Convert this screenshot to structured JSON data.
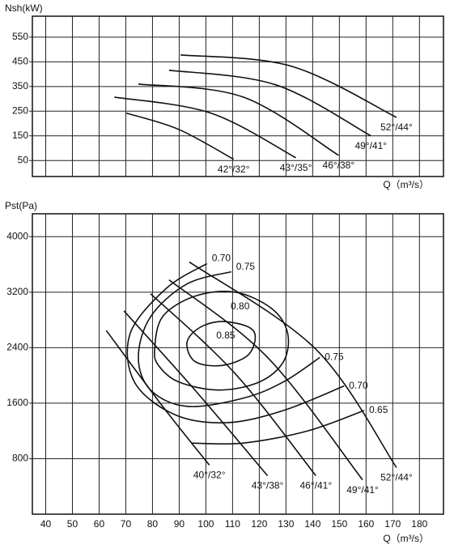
{
  "chart_data": [
    {
      "type": "line",
      "ylabel": "Nsh(kW)",
      "xlabel": "Q（m³/s）",
      "xlim": [
        35,
        189
      ],
      "ylim": [
        -15,
        635
      ],
      "xticks": [
        40,
        50,
        60,
        70,
        80,
        90,
        100,
        110,
        120,
        130,
        140,
        150,
        160,
        170,
        180
      ],
      "xtick_labels": false,
      "yticks": [
        50,
        150,
        250,
        350,
        450,
        550
      ],
      "grid": true,
      "color": "#111111",
      "series": [
        {
          "name": "42°/32°",
          "x": [
            70.2,
            89.8,
            110.4
          ],
          "values": [
            242,
            176,
            55
          ]
        },
        {
          "name": "43°/35°",
          "x": [
            65.7,
            101.9,
            133.7
          ],
          "values": [
            307,
            242,
            61
          ]
        },
        {
          "name": "46°/38°",
          "x": [
            74.7,
            114,
            149.7
          ],
          "values": [
            360,
            307,
            71
          ]
        },
        {
          "name": "49°/41°",
          "x": [
            86.2,
            126.1,
            161.8
          ],
          "values": [
            416,
            357,
            150
          ]
        },
        {
          "name": "52°/44°",
          "x": [
            90.5,
            132.1,
            171.4
          ],
          "values": [
            478,
            432,
            225
          ]
        }
      ]
    },
    {
      "type": "line",
      "ylabel": "Pst(Pa)",
      "xlabel": "Q（m³/s）",
      "xlim": [
        35,
        189
      ],
      "ylim": [
        0,
        4330
      ],
      "xticks": [
        40,
        50,
        60,
        70,
        80,
        90,
        100,
        110,
        120,
        130,
        140,
        150,
        160,
        170,
        180
      ],
      "xtick_labels": true,
      "yticks": [
        800,
        1600,
        2400,
        3200,
        4000
      ],
      "grid": true,
      "color": "#111111",
      "series": [
        {
          "name": "40°/32°",
          "x": [
            62.7,
            83.8,
            101.3
          ],
          "values": [
            2647,
            1554,
            707
          ]
        },
        {
          "name": "43°/38°",
          "x": [
            69.3,
            95.9,
            123.1
          ],
          "values": [
            2930,
            1789,
            554
          ]
        },
        {
          "name": "46°/41°",
          "x": [
            79.3,
            111,
            141.2
          ],
          "values": [
            3177,
            2024,
            554
          ]
        },
        {
          "name": "49°/41°",
          "x": [
            86.2,
            123.1,
            158.7
          ],
          "values": [
            3377,
            2259,
            495
          ]
        },
        {
          "name": "52°/44°",
          "x": [
            93.8,
            141.2,
            171.4
          ],
          "values": [
            3635,
            2377,
            672
          ]
        }
      ],
      "contours": [
        {
          "name": "0.85",
          "closed": true,
          "label_at": [
            "inside"
          ],
          "x": [
            92.9,
            97.4,
            105.6,
            115.5,
            118.5,
            115.5,
            105.6,
            95.9
          ],
          "values": [
            2471,
            2683,
            2777,
            2706,
            2553,
            2283,
            2142,
            2201
          ]
        },
        {
          "name": "0.80",
          "closed": true,
          "label_at": [
            "inside"
          ],
          "x": [
            80.8,
            83.8,
            95.9,
            111,
            124.6,
            130.6,
            129.1,
            120.1,
            105,
            89.8,
            82.3
          ],
          "values": [
            2377,
            2848,
            3142,
            3200,
            2965,
            2612,
            2201,
            1907,
            1789,
            1907,
            2142
          ]
        },
        {
          "name": "0.75",
          "closed": false,
          "label_at": [
            "start",
            "end"
          ],
          "x": [
            109.5,
            92.9,
            79.3,
            74.7,
            79.3,
            92.9,
            114,
            129.1,
            142.7
          ],
          "values": [
            3494,
            3318,
            2847,
            2260,
            1789,
            1554,
            1672,
            1907,
            2260
          ]
        },
        {
          "name": "0.70",
          "closed": false,
          "label_at": [
            "start",
            "end"
          ],
          "x": [
            100.4,
            85.3,
            71.7,
            73.2,
            88.3,
            108,
            129.1,
            151.8
          ],
          "values": [
            3612,
            3259,
            2612,
            1907,
            1436,
            1319,
            1495,
            1848
          ]
        },
        {
          "name": "0.65",
          "closed": false,
          "label_at": [
            "end"
          ],
          "x": [
            94.4,
            114,
            138.2,
            159.3
          ],
          "values": [
            1025,
            1025,
            1201,
            1495
          ]
        }
      ]
    }
  ]
}
